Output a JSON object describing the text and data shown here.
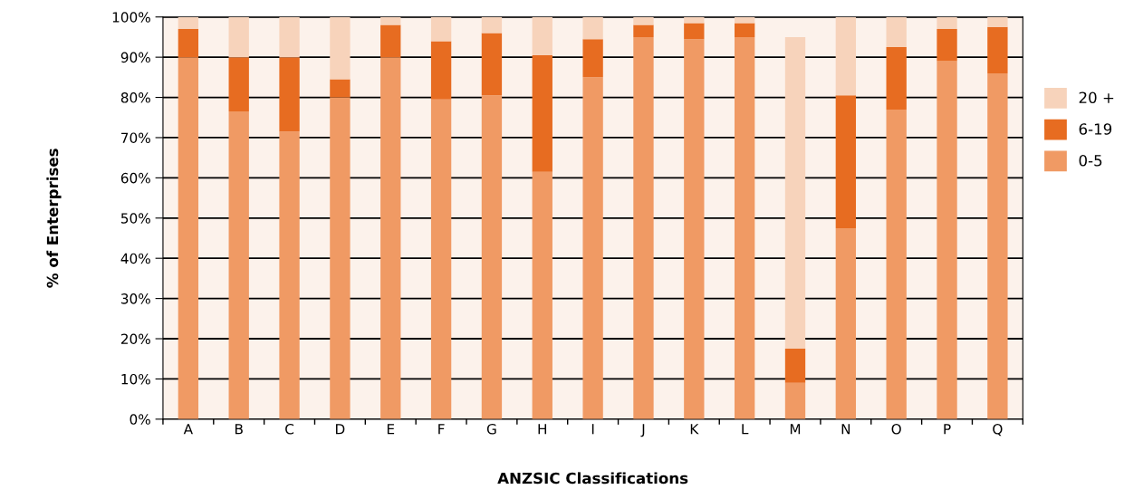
{
  "chart_data": {
    "type": "bar",
    "stacked": true,
    "xlabel": "ANZSIC Classifications",
    "ylabel": "% of Enterprises",
    "categories": [
      "A",
      "B",
      "C",
      "D",
      "E",
      "F",
      "G",
      "H",
      "I",
      "J",
      "K",
      "L",
      "M",
      "N",
      "O",
      "P",
      "Q"
    ],
    "series": [
      {
        "name": "0-5",
        "color": "#f09a64",
        "values": [
          90,
          76.5,
          71.5,
          80,
          90,
          79.5,
          80.5,
          61.5,
          85,
          95,
          94.5,
          95,
          9,
          47.5,
          77,
          89,
          86
        ]
      },
      {
        "name": "6-19",
        "color": "#e76c21",
        "values": [
          7,
          13.5,
          18.5,
          4.5,
          8,
          14.5,
          15.5,
          29,
          9.5,
          3,
          4,
          3.5,
          8.5,
          33,
          15.5,
          8,
          11.5
        ]
      },
      {
        "name": "20 +",
        "color": "#f7d3bb",
        "values": [
          3,
          10,
          10,
          15.5,
          2,
          6,
          4,
          9.5,
          5.5,
          2,
          1.5,
          1.5,
          77.5,
          19.5,
          7.5,
          3,
          2.5
        ]
      }
    ],
    "ylim": [
      0,
      100
    ],
    "yticks": [
      {
        "value": 0,
        "label": "0%"
      },
      {
        "value": 10,
        "label": "10%"
      },
      {
        "value": 20,
        "label": "20%"
      },
      {
        "value": 30,
        "label": "30%"
      },
      {
        "value": 40,
        "label": "40%"
      },
      {
        "value": 50,
        "label": "50%"
      },
      {
        "value": 60,
        "label": "60%"
      },
      {
        "value": 70,
        "label": "70%"
      },
      {
        "value": 80,
        "label": "80%"
      },
      {
        "value": 90,
        "label": "90%"
      },
      {
        "value": 100,
        "label": "100%"
      }
    ],
    "grid": "y",
    "legend": "right"
  }
}
